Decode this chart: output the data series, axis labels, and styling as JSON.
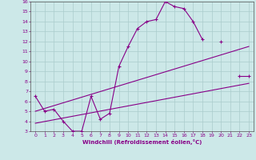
{
  "xlabel": "Windchill (Refroidissement éolien,°C)",
  "bg_color": "#cce8e8",
  "line_color": "#880088",
  "grid_color": "#aacccc",
  "xlim": [
    -0.5,
    23.5
  ],
  "ylim": [
    3,
    16
  ],
  "xticks": [
    0,
    1,
    2,
    3,
    4,
    5,
    6,
    7,
    8,
    9,
    10,
    11,
    12,
    13,
    14,
    15,
    16,
    17,
    18,
    19,
    20,
    21,
    22,
    23
  ],
  "yticks": [
    3,
    4,
    5,
    6,
    7,
    8,
    9,
    10,
    11,
    12,
    13,
    14,
    15,
    16
  ],
  "curve_x": [
    0,
    1,
    2,
    3,
    4,
    5,
    6,
    7,
    8,
    9,
    10,
    11,
    12,
    13,
    14,
    15,
    16,
    17,
    18,
    19,
    20,
    21,
    22,
    23
  ],
  "curve_y": [
    6.5,
    5.0,
    5.2,
    4.0,
    3.0,
    3.0,
    6.5,
    4.2,
    4.8,
    9.5,
    11.5,
    13.3,
    14.0,
    14.2,
    16.0,
    15.5,
    15.3,
    14.0,
    12.2,
    null,
    12.0,
    null,
    8.5,
    8.5
  ],
  "line1_x": [
    0,
    23
  ],
  "line1_y": [
    5.0,
    11.5
  ],
  "line2_x": [
    0,
    23
  ],
  "line2_y": [
    3.8,
    7.8
  ]
}
